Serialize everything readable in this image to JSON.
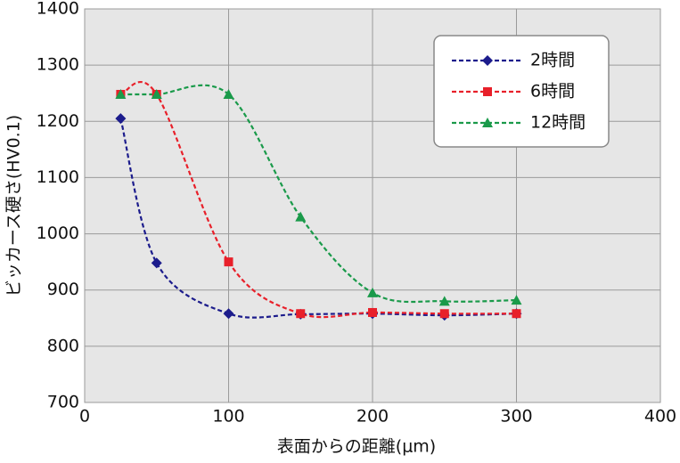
{
  "chart_data": {
    "type": "line",
    "x_label": "表面からの距離(μm)",
    "y_label": "ビッカース硬さ(HV0.1)",
    "x": [
      25,
      50,
      100,
      150,
      200,
      250,
      300
    ],
    "series": [
      {
        "name": "2時間",
        "color": "#1c1c8c",
        "marker": "diamond",
        "values": [
          1205,
          948,
          858,
          857,
          858,
          855,
          858
        ]
      },
      {
        "name": "6時間",
        "color": "#e8202a",
        "marker": "square",
        "values": [
          1248,
          1248,
          950,
          858,
          860,
          858,
          858
        ]
      },
      {
        "name": "12時間",
        "color": "#1a9a4a",
        "marker": "triangle",
        "values": [
          1248,
          1248,
          1248,
          1030,
          895,
          880,
          882
        ]
      }
    ],
    "xlim": [
      0,
      400
    ],
    "xticks": [
      0,
      100,
      200,
      300,
      400
    ],
    "ylim": [
      700,
      1400
    ],
    "yticks": [
      700,
      800,
      900,
      1000,
      1100,
      1200,
      1300,
      1400
    ],
    "grid": true,
    "legend": "top-right"
  }
}
